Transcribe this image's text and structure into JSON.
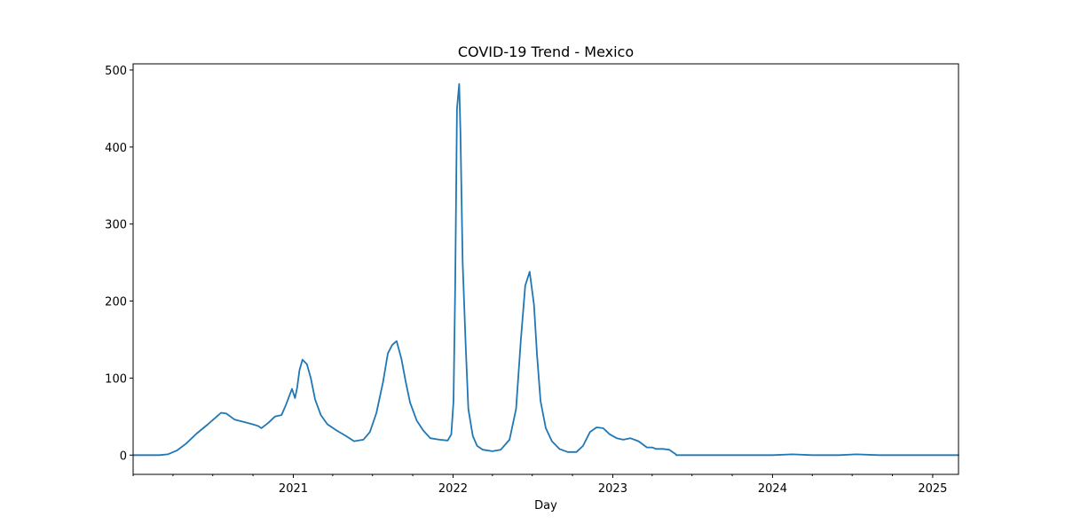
{
  "chart_data": {
    "type": "line",
    "title": "COVID-19 Trend - Mexico",
    "xlabel": "Day",
    "ylabel": "",
    "xlim": [
      "2020-01-01",
      "2025-03-01"
    ],
    "ylim": [
      -25,
      508
    ],
    "grid": false,
    "legend": "none",
    "x_ticks": [
      {
        "date": "2021-01-01",
        "label": "2021"
      },
      {
        "date": "2022-01-01",
        "label": "2022"
      },
      {
        "date": "2023-01-01",
        "label": "2023"
      },
      {
        "date": "2024-01-01",
        "label": "2024"
      },
      {
        "date": "2025-01-01",
        "label": "2025"
      }
    ],
    "y_ticks": [
      0,
      100,
      200,
      300,
      400,
      500
    ],
    "series": [
      {
        "color": "#1f77b4",
        "x": [
          "2020-01-01",
          "2020-03-01",
          "2020-03-20",
          "2020-04-10",
          "2020-05-01",
          "2020-05-25",
          "2020-06-20",
          "2020-07-10",
          "2020-07-20",
          "2020-08-01",
          "2020-08-20",
          "2020-09-10",
          "2020-09-30",
          "2020-10-12",
          "2020-10-20",
          "2020-11-05",
          "2020-11-20",
          "2020-12-05",
          "2020-12-15",
          "2020-12-25",
          "2020-12-29",
          "2021-01-05",
          "2021-01-10",
          "2021-01-15",
          "2021-01-22",
          "2021-02-01",
          "2021-02-10",
          "2021-02-20",
          "2021-03-05",
          "2021-03-20",
          "2021-04-10",
          "2021-05-01",
          "2021-05-20",
          "2021-06-10",
          "2021-06-25",
          "2021-07-10",
          "2021-07-25",
          "2021-08-05",
          "2021-08-15",
          "2021-08-25",
          "2021-09-05",
          "2021-09-15",
          "2021-09-25",
          "2021-10-10",
          "2021-10-25",
          "2021-11-10",
          "2021-12-01",
          "2021-12-20",
          "2021-12-28",
          "2022-01-02",
          "2022-01-06",
          "2022-01-10",
          "2022-01-15",
          "2022-01-18",
          "2022-01-23",
          "2022-01-30",
          "2022-02-05",
          "2022-02-15",
          "2022-02-25",
          "2022-03-10",
          "2022-04-01",
          "2022-04-20",
          "2022-05-10",
          "2022-05-25",
          "2022-06-05",
          "2022-06-15",
          "2022-06-25",
          "2022-07-05",
          "2022-07-12",
          "2022-07-20",
          "2022-08-01",
          "2022-08-15",
          "2022-09-01",
          "2022-09-20",
          "2022-10-10",
          "2022-10-25",
          "2022-11-10",
          "2022-11-25",
          "2022-12-10",
          "2022-12-25",
          "2023-01-10",
          "2023-01-25",
          "2023-02-10",
          "2023-03-01",
          "2023-03-20",
          "2023-04-01",
          "2023-04-10",
          "2023-04-25",
          "2023-05-10",
          "2023-05-25",
          "2023-05-26",
          "2024-01-01",
          "2024-02-15",
          "2024-04-01",
          "2024-06-01",
          "2024-07-10",
          "2024-09-01",
          "2025-03-01"
        ],
        "values": [
          0,
          0,
          1,
          6,
          15,
          28,
          40,
          50,
          55,
          54,
          46,
          43,
          40,
          38,
          35,
          42,
          50,
          52,
          65,
          80,
          86,
          74,
          88,
          110,
          124,
          118,
          100,
          72,
          52,
          40,
          32,
          25,
          18,
          20,
          30,
          55,
          95,
          132,
          143,
          148,
          125,
          95,
          68,
          45,
          32,
          22,
          20,
          19,
          27,
          70,
          220,
          450,
          482,
          420,
          250,
          140,
          60,
          25,
          12,
          7,
          5,
          7,
          20,
          60,
          150,
          220,
          238,
          195,
          130,
          70,
          35,
          18,
          8,
          4,
          4,
          12,
          30,
          36,
          35,
          27,
          22,
          20,
          22,
          18,
          10,
          10,
          8,
          8,
          7,
          1,
          0,
          0,
          1,
          0,
          0,
          1,
          0,
          0
        ]
      }
    ]
  }
}
